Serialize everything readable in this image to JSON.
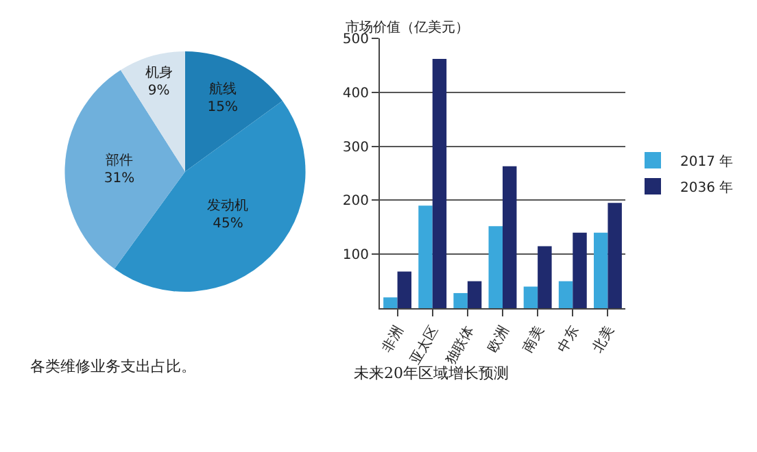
{
  "chart_data": [
    {
      "type": "pie",
      "categories": [
        "航线",
        "发动机",
        "部件",
        "机身"
      ],
      "values": [
        15,
        45,
        31,
        9
      ],
      "value_labels": [
        "15%",
        "45%",
        "31%",
        "9%"
      ],
      "colors": [
        "#1f7fb6",
        "#2b92c9",
        "#6fb0dc",
        "#d6e4ef"
      ],
      "legend": false,
      "annotations": [
        "各类维修业务支出占比。"
      ]
    },
    {
      "type": "bar",
      "categories": [
        "非洲",
        "亚太区",
        "独联体",
        "欧洲",
        "南美",
        "中东",
        "北美"
      ],
      "ylabel": "市场价值（亿美元）",
      "ylim": [
        0,
        500
      ],
      "yticks": [
        100,
        200,
        300,
        400,
        500
      ],
      "grid": "y",
      "legend": "right",
      "series": [
        {
          "name": "2017 年",
          "color": "#3aa8dc",
          "values": [
            20,
            190,
            28,
            152,
            40,
            50,
            140
          ]
        },
        {
          "name": "2036 年",
          "color": "#1f2a6e",
          "values": [
            68,
            462,
            50,
            263,
            115,
            140,
            195
          ]
        }
      ],
      "annotations": [
        "未来20年区域增长预测"
      ]
    }
  ]
}
